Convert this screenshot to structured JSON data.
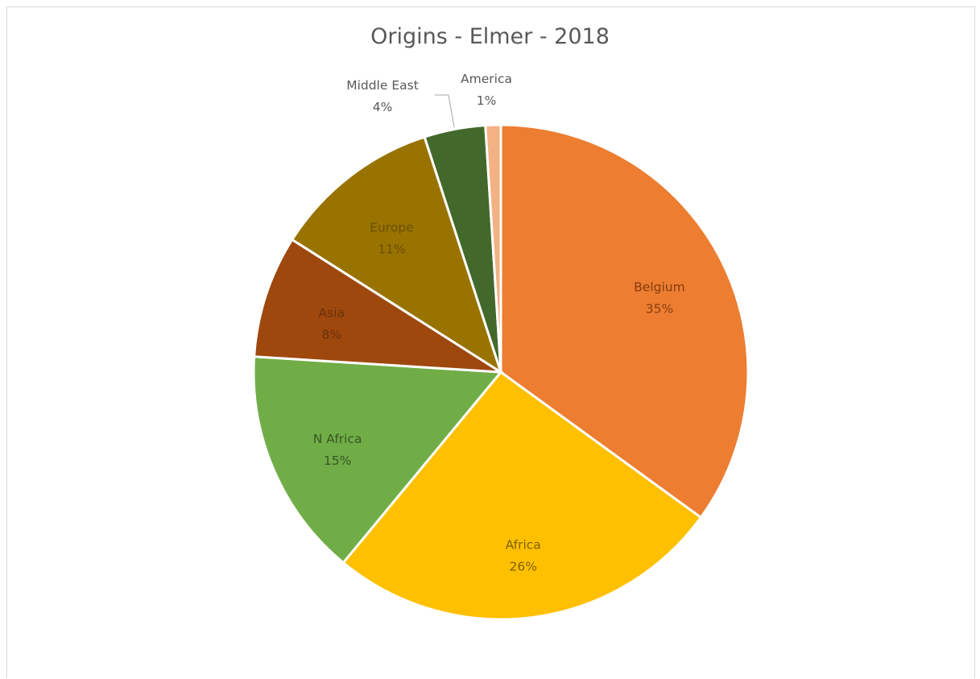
{
  "chart_data": {
    "type": "pie",
    "title": "Origins - Elmer - 2018",
    "slices": [
      {
        "label": "Belgium",
        "value": 35,
        "percent_label": "35%",
        "color": "#ED7D31",
        "label_color": "#843C0C"
      },
      {
        "label": "Africa",
        "value": 26,
        "percent_label": "26%",
        "color": "#FFC000",
        "label_color": "#7F6000"
      },
      {
        "label": "N Africa",
        "value": 15,
        "percent_label": "15%",
        "color": "#70AD47",
        "label_color": "#375623"
      },
      {
        "label": "Asia",
        "value": 8,
        "percent_label": "8%",
        "color": "#9E480E",
        "label_color": "#6B3009"
      },
      {
        "label": "Europe",
        "value": 11,
        "percent_label": "11%",
        "color": "#997300",
        "label_color": "#6B5000"
      },
      {
        "label": "Middle East",
        "value": 4,
        "percent_label": "4%",
        "color": "#43682B",
        "label_color": "#595959"
      },
      {
        "label": "America",
        "value": 1,
        "percent_label": "1%",
        "color": "#F4B183",
        "label_color": "#595959"
      }
    ],
    "start": "top",
    "direction": "clockwise",
    "legend": "none"
  }
}
